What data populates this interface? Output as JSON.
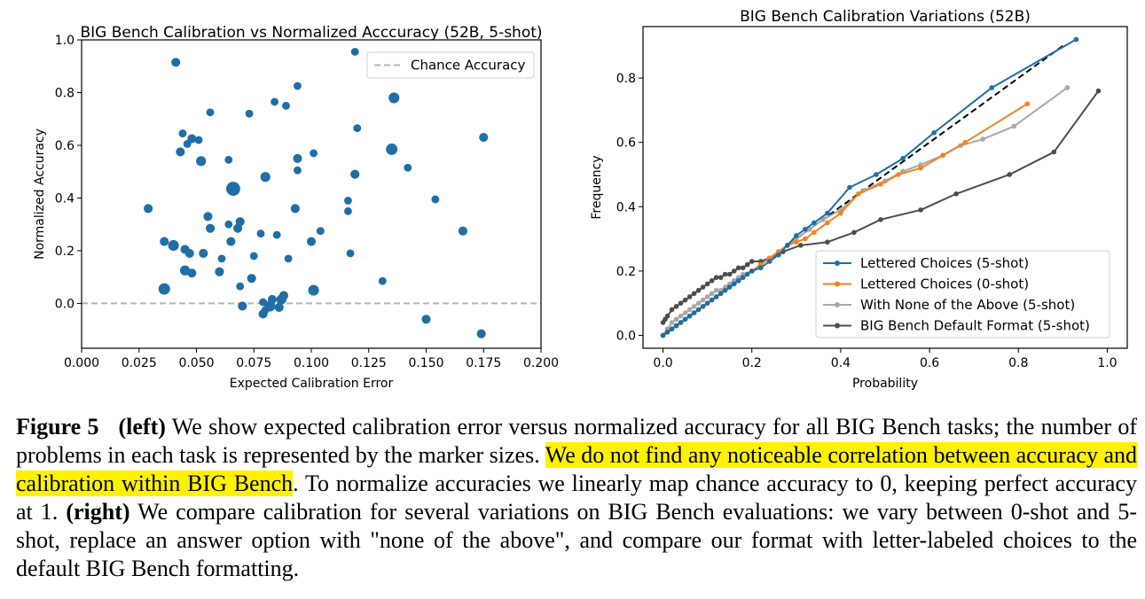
{
  "chart_data": [
    {
      "type": "scatter",
      "title": "BIG Bench Calibration vs Normalized Acccuracy (52B, 5-shot)",
      "xlabel": "Expected Calibration Error",
      "ylabel": "Normalized Accuracy",
      "xlim": [
        0.0,
        0.2
      ],
      "ylim": [
        -0.17,
        1.0
      ],
      "xticks": [
        "0.000",
        "0.025",
        "0.050",
        "0.075",
        "0.100",
        "0.125",
        "0.150",
        "0.175",
        "0.200"
      ],
      "yticks": [
        "0.0",
        "0.2",
        "0.4",
        "0.6",
        "0.8",
        "1.0"
      ],
      "legend": "top-right",
      "marker_color": "#1f6fa6",
      "reference_line": {
        "name": "Chance Accuracy",
        "y": 0.0,
        "style": "dashed",
        "color": "#b5b5b5"
      },
      "marker_size_meaning": "number of problems in task",
      "points": [
        {
          "x": 0.041,
          "y": 0.915,
          "s": 3
        },
        {
          "x": 0.119,
          "y": 0.955,
          "s": 2
        },
        {
          "x": 0.094,
          "y": 0.825,
          "s": 2
        },
        {
          "x": 0.084,
          "y": 0.765,
          "s": 2
        },
        {
          "x": 0.089,
          "y": 0.75,
          "s": 2
        },
        {
          "x": 0.136,
          "y": 0.78,
          "s": 5
        },
        {
          "x": 0.056,
          "y": 0.725,
          "s": 2
        },
        {
          "x": 0.073,
          "y": 0.72,
          "s": 2
        },
        {
          "x": 0.12,
          "y": 0.665,
          "s": 2
        },
        {
          "x": 0.044,
          "y": 0.645,
          "s": 2
        },
        {
          "x": 0.046,
          "y": 0.605,
          "s": 2
        },
        {
          "x": 0.048,
          "y": 0.625,
          "s": 3
        },
        {
          "x": 0.051,
          "y": 0.62,
          "s": 2
        },
        {
          "x": 0.043,
          "y": 0.575,
          "s": 3
        },
        {
          "x": 0.052,
          "y": 0.54,
          "s": 4
        },
        {
          "x": 0.064,
          "y": 0.545,
          "s": 2
        },
        {
          "x": 0.175,
          "y": 0.63,
          "s": 3
        },
        {
          "x": 0.135,
          "y": 0.585,
          "s": 6
        },
        {
          "x": 0.101,
          "y": 0.57,
          "s": 2
        },
        {
          "x": 0.094,
          "y": 0.55,
          "s": 3
        },
        {
          "x": 0.142,
          "y": 0.515,
          "s": 2
        },
        {
          "x": 0.094,
          "y": 0.505,
          "s": 2
        },
        {
          "x": 0.119,
          "y": 0.49,
          "s": 3
        },
        {
          "x": 0.08,
          "y": 0.48,
          "s": 4
        },
        {
          "x": 0.066,
          "y": 0.435,
          "s": 10
        },
        {
          "x": 0.154,
          "y": 0.395,
          "s": 2
        },
        {
          "x": 0.116,
          "y": 0.39,
          "s": 2
        },
        {
          "x": 0.029,
          "y": 0.36,
          "s": 3
        },
        {
          "x": 0.093,
          "y": 0.36,
          "s": 3
        },
        {
          "x": 0.116,
          "y": 0.35,
          "s": 2
        },
        {
          "x": 0.055,
          "y": 0.33,
          "s": 3
        },
        {
          "x": 0.069,
          "y": 0.31,
          "s": 3
        },
        {
          "x": 0.064,
          "y": 0.3,
          "s": 2
        },
        {
          "x": 0.056,
          "y": 0.285,
          "s": 3
        },
        {
          "x": 0.068,
          "y": 0.285,
          "s": 3
        },
        {
          "x": 0.166,
          "y": 0.275,
          "s": 3
        },
        {
          "x": 0.104,
          "y": 0.275,
          "s": 2
        },
        {
          "x": 0.078,
          "y": 0.265,
          "s": 2
        },
        {
          "x": 0.085,
          "y": 0.26,
          "s": 2
        },
        {
          "x": 0.036,
          "y": 0.235,
          "s": 3
        },
        {
          "x": 0.065,
          "y": 0.235,
          "s": 3
        },
        {
          "x": 0.1,
          "y": 0.235,
          "s": 3
        },
        {
          "x": 0.04,
          "y": 0.22,
          "s": 5
        },
        {
          "x": 0.045,
          "y": 0.205,
          "s": 3
        },
        {
          "x": 0.047,
          "y": 0.19,
          "s": 3
        },
        {
          "x": 0.053,
          "y": 0.19,
          "s": 3
        },
        {
          "x": 0.117,
          "y": 0.19,
          "s": 2
        },
        {
          "x": 0.09,
          "y": 0.17,
          "s": 2
        },
        {
          "x": 0.061,
          "y": 0.17,
          "s": 2
        },
        {
          "x": 0.075,
          "y": 0.18,
          "s": 2
        },
        {
          "x": 0.045,
          "y": 0.125,
          "s": 4
        },
        {
          "x": 0.06,
          "y": 0.12,
          "s": 3
        },
        {
          "x": 0.048,
          "y": 0.115,
          "s": 3
        },
        {
          "x": 0.074,
          "y": 0.095,
          "s": 3
        },
        {
          "x": 0.131,
          "y": 0.085,
          "s": 2
        },
        {
          "x": 0.069,
          "y": 0.065,
          "s": 2
        },
        {
          "x": 0.036,
          "y": 0.055,
          "s": 6
        },
        {
          "x": 0.101,
          "y": 0.05,
          "s": 5
        },
        {
          "x": 0.088,
          "y": 0.03,
          "s": 3
        },
        {
          "x": 0.083,
          "y": 0.015,
          "s": 3
        },
        {
          "x": 0.087,
          "y": 0.015,
          "s": 4
        },
        {
          "x": 0.079,
          "y": 0.005,
          "s": 2
        },
        {
          "x": 0.07,
          "y": -0.01,
          "s": 3
        },
        {
          "x": 0.082,
          "y": -0.01,
          "s": 5
        },
        {
          "x": 0.086,
          "y": -0.015,
          "s": 3
        },
        {
          "x": 0.08,
          "y": -0.025,
          "s": 2
        },
        {
          "x": 0.079,
          "y": -0.04,
          "s": 3
        },
        {
          "x": 0.15,
          "y": -0.06,
          "s": 3
        },
        {
          "x": 0.174,
          "y": -0.115,
          "s": 3
        }
      ]
    },
    {
      "type": "line",
      "title": "BIG Bench Calibration Variations (52B)",
      "xlabel": "Probability",
      "ylabel": "Frequency",
      "xlim": [
        -0.045,
        1.045
      ],
      "ylim": [
        -0.04,
        0.96
      ],
      "xticks": [
        "0.0",
        "0.2",
        "0.4",
        "0.6",
        "0.8",
        "1.0"
      ],
      "yticks": [
        "0.0",
        "0.2",
        "0.4",
        "0.6",
        "0.8"
      ],
      "legend": "bottom-right",
      "reference_line": {
        "from": [
          0,
          0
        ],
        "to": [
          0.9,
          0.9
        ],
        "style": "dashed",
        "color": "#000000"
      },
      "series": [
        {
          "name": "Lettered Choices (5-shot)",
          "color": "#1f6fa6",
          "x": [
            0.0,
            0.01,
            0.02,
            0.03,
            0.04,
            0.05,
            0.06,
            0.07,
            0.08,
            0.09,
            0.1,
            0.11,
            0.12,
            0.13,
            0.14,
            0.15,
            0.16,
            0.17,
            0.18,
            0.19,
            0.2,
            0.22,
            0.24,
            0.26,
            0.28,
            0.3,
            0.32,
            0.34,
            0.37,
            0.42,
            0.48,
            0.54,
            0.61,
            0.74,
            0.93
          ],
          "y": [
            0.0,
            0.01,
            0.02,
            0.03,
            0.04,
            0.05,
            0.06,
            0.07,
            0.08,
            0.09,
            0.1,
            0.11,
            0.12,
            0.13,
            0.14,
            0.15,
            0.16,
            0.17,
            0.18,
            0.19,
            0.2,
            0.21,
            0.23,
            0.25,
            0.28,
            0.31,
            0.33,
            0.35,
            0.38,
            0.46,
            0.5,
            0.55,
            0.63,
            0.77,
            0.92
          ]
        },
        {
          "name": "Lettered Choices (0-shot)",
          "color": "#f5821f",
          "x": [
            0.0,
            0.01,
            0.02,
            0.03,
            0.04,
            0.05,
            0.06,
            0.07,
            0.08,
            0.09,
            0.1,
            0.11,
            0.12,
            0.13,
            0.14,
            0.15,
            0.16,
            0.17,
            0.18,
            0.2,
            0.22,
            0.24,
            0.26,
            0.28,
            0.3,
            0.32,
            0.34,
            0.37,
            0.4,
            0.44,
            0.49,
            0.53,
            0.58,
            0.63,
            0.68,
            0.82
          ],
          "y": [
            0.0,
            0.01,
            0.02,
            0.03,
            0.04,
            0.05,
            0.06,
            0.07,
            0.08,
            0.09,
            0.1,
            0.11,
            0.12,
            0.13,
            0.14,
            0.15,
            0.16,
            0.17,
            0.18,
            0.2,
            0.22,
            0.24,
            0.26,
            0.28,
            0.29,
            0.3,
            0.32,
            0.35,
            0.38,
            0.44,
            0.47,
            0.5,
            0.52,
            0.56,
            0.6,
            0.72
          ]
        },
        {
          "name": "With None of the Above (5-shot)",
          "color": "#a8a8a8",
          "x": [
            0.0,
            0.01,
            0.02,
            0.03,
            0.04,
            0.05,
            0.06,
            0.07,
            0.08,
            0.09,
            0.1,
            0.11,
            0.12,
            0.13,
            0.14,
            0.15,
            0.16,
            0.17,
            0.18,
            0.2,
            0.22,
            0.24,
            0.26,
            0.28,
            0.3,
            0.33,
            0.36,
            0.4,
            0.45,
            0.5,
            0.54,
            0.58,
            0.63,
            0.67,
            0.72,
            0.79,
            0.91
          ],
          "y": [
            0.0,
            0.02,
            0.04,
            0.05,
            0.06,
            0.07,
            0.08,
            0.09,
            0.1,
            0.11,
            0.12,
            0.13,
            0.14,
            0.14,
            0.15,
            0.16,
            0.17,
            0.18,
            0.19,
            0.2,
            0.22,
            0.24,
            0.26,
            0.28,
            0.3,
            0.33,
            0.36,
            0.39,
            0.45,
            0.48,
            0.51,
            0.53,
            0.56,
            0.59,
            0.61,
            0.65,
            0.77
          ]
        },
        {
          "name": "BIG Bench Default Format (5-shot)",
          "color": "#4d4d4d",
          "x": [
            0.0,
            0.005,
            0.01,
            0.02,
            0.03,
            0.04,
            0.05,
            0.06,
            0.07,
            0.08,
            0.09,
            0.1,
            0.11,
            0.12,
            0.13,
            0.14,
            0.15,
            0.16,
            0.17,
            0.18,
            0.19,
            0.2,
            0.22,
            0.24,
            0.27,
            0.31,
            0.37,
            0.43,
            0.49,
            0.58,
            0.66,
            0.78,
            0.88,
            0.98
          ],
          "y": [
            0.04,
            0.05,
            0.06,
            0.08,
            0.09,
            0.1,
            0.11,
            0.12,
            0.13,
            0.14,
            0.15,
            0.16,
            0.17,
            0.18,
            0.18,
            0.19,
            0.19,
            0.2,
            0.21,
            0.21,
            0.22,
            0.23,
            0.23,
            0.24,
            0.26,
            0.28,
            0.29,
            0.32,
            0.36,
            0.39,
            0.44,
            0.5,
            0.57,
            0.76
          ]
        }
      ]
    }
  ],
  "caption": {
    "figure_label": "Figure 5",
    "left_tag": "(left)",
    "text_1": " We show expected calibration error versus normalized accuracy for all BIG Bench tasks; the number of problems in each task is represented by the marker sizes. ",
    "highlight": "We do not find any noticeable correlation between accuracy and calibration within BIG Bench",
    "text_2": ". To normalize accuracies we linearly map chance accuracy to 0, keeping perfect accuracy at 1. ",
    "right_tag": "(right)",
    "text_3": " We compare calibration for several variations on BIG Bench evaluations: we vary between 0-shot and 5-shot, replace an answer option with \"none of the above\", and compare our format with letter-labeled choices to the default BIG Bench formatting."
  }
}
